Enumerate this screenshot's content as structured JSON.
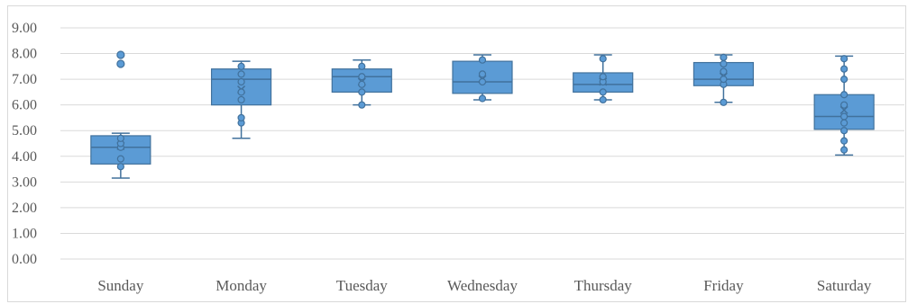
{
  "colors": {
    "box_fill": "#5b9bd5",
    "box_stroke": "#41719c",
    "gridline": "#d9d9d9",
    "axis_text": "#595959"
  },
  "chart_data": {
    "type": "box",
    "title": "",
    "xlabel": "",
    "ylabel": "",
    "ylim": [
      0,
      9
    ],
    "y_ticks": [
      "0.00",
      "1.00",
      "2.00",
      "3.00",
      "4.00",
      "5.00",
      "6.00",
      "7.00",
      "8.00",
      "9.00"
    ],
    "grid": true,
    "categories": [
      "Sunday",
      "Monday",
      "Tuesday",
      "Wednesday",
      "Thursday",
      "Friday",
      "Saturday"
    ],
    "boxes": [
      {
        "category": "Sunday",
        "min": 3.15,
        "q1": 3.7,
        "median": 4.35,
        "mean": 4.4,
        "q3": 4.8,
        "max": 4.9,
        "points": [
          3.6,
          3.9,
          4.35,
          4.5,
          4.7
        ],
        "outliers": [
          7.6,
          7.95
        ]
      },
      {
        "category": "Monday",
        "min": 4.7,
        "q1": 6.0,
        "median": 7.0,
        "mean": 6.6,
        "q3": 7.4,
        "max": 7.7,
        "points": [
          5.3,
          5.5,
          6.2,
          6.5,
          6.9,
          7.2,
          7.5
        ],
        "outliers": []
      },
      {
        "category": "Tuesday",
        "min": 6.0,
        "q1": 6.5,
        "median": 7.1,
        "mean": 6.9,
        "q3": 7.4,
        "max": 7.75,
        "points": [
          6.0,
          6.5,
          6.8,
          7.1,
          7.5
        ],
        "outliers": []
      },
      {
        "category": "Wednesday",
        "min": 6.2,
        "q1": 6.45,
        "median": 6.9,
        "mean": 7.0,
        "q3": 7.7,
        "max": 7.95,
        "points": [
          6.25,
          6.9,
          7.2,
          7.75
        ],
        "outliers": []
      },
      {
        "category": "Thursday",
        "min": 6.2,
        "q1": 6.5,
        "median": 6.8,
        "mean": 6.9,
        "q3": 7.25,
        "max": 7.95,
        "points": [
          6.2,
          6.5,
          6.9,
          7.1,
          7.8
        ],
        "outliers": []
      },
      {
        "category": "Friday",
        "min": 6.1,
        "q1": 6.75,
        "median": 7.0,
        "mean": 7.1,
        "q3": 7.65,
        "max": 7.95,
        "points": [
          6.1,
          6.8,
          7.0,
          7.3,
          7.6,
          7.85
        ],
        "outliers": []
      },
      {
        "category": "Saturday",
        "min": 4.05,
        "q1": 5.05,
        "median": 5.55,
        "mean": 5.8,
        "q3": 6.4,
        "max": 7.9,
        "points": [
          4.25,
          4.6,
          5.0,
          5.3,
          5.55,
          6.0,
          6.4,
          7.0,
          7.4,
          7.8
        ],
        "outliers": []
      }
    ]
  }
}
